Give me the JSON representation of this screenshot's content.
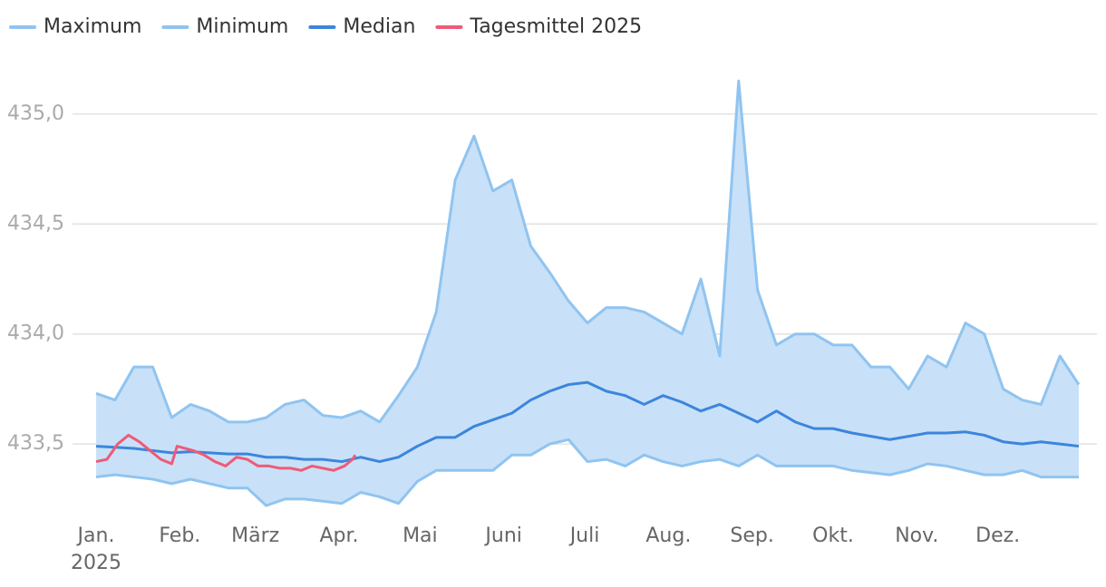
{
  "chart_data": {
    "type": "line",
    "xlim": [
      1,
      365
    ],
    "xticks": [
      {
        "value": 1,
        "label": "Jan."
      },
      {
        "value": 32,
        "label": "Feb."
      },
      {
        "value": 60,
        "label": "März"
      },
      {
        "value": 91,
        "label": "Apr."
      },
      {
        "value": 121,
        "label": "Mai"
      },
      {
        "value": 152,
        "label": "Juni"
      },
      {
        "value": 182,
        "label": "Juli"
      },
      {
        "value": 213,
        "label": "Aug."
      },
      {
        "value": 244,
        "label": "Sep."
      },
      {
        "value": 274,
        "label": "Okt."
      },
      {
        "value": 305,
        "label": "Nov."
      },
      {
        "value": 335,
        "label": "Dez."
      }
    ],
    "year_label": "2025",
    "ylim": [
      433.2,
      435.3
    ],
    "yticks": [
      {
        "value": 433.5,
        "label": "433,5"
      },
      {
        "value": 434.0,
        "label": "434,0"
      },
      {
        "value": 434.5,
        "label": "434,5"
      },
      {
        "value": 435.0,
        "label": "435,0"
      }
    ],
    "grid": true,
    "band_fill": "#c8e1f8",
    "series": [
      {
        "name": "Maximum",
        "color": "#90c4f0",
        "x": [
          1,
          8,
          15,
          22,
          29,
          36,
          43,
          50,
          57,
          64,
          71,
          78,
          85,
          92,
          99,
          106,
          113,
          120,
          127,
          134,
          141,
          148,
          155,
          162,
          169,
          176,
          183,
          190,
          197,
          204,
          211,
          218,
          225,
          232,
          239,
          246,
          253,
          260,
          267,
          274,
          281,
          288,
          295,
          302,
          309,
          316,
          323,
          330,
          337,
          344,
          351,
          358,
          365
        ],
        "values": [
          433.73,
          433.7,
          433.85,
          433.85,
          433.62,
          433.68,
          433.65,
          433.6,
          433.6,
          433.62,
          433.68,
          433.7,
          433.63,
          433.62,
          433.65,
          433.6,
          433.72,
          433.85,
          434.1,
          434.7,
          434.9,
          434.65,
          434.7,
          434.4,
          434.28,
          434.15,
          434.05,
          434.12,
          434.12,
          434.1,
          434.05,
          434.0,
          434.25,
          433.9,
          435.15,
          434.2,
          433.95,
          434.0,
          434.0,
          433.95,
          433.95,
          433.85,
          433.85,
          433.75,
          433.9,
          433.85,
          434.05,
          434.0,
          433.75,
          433.7,
          433.68,
          433.9,
          433.77
        ]
      },
      {
        "name": "Minimum",
        "color": "#90c4f0",
        "x": [
          1,
          8,
          15,
          22,
          29,
          36,
          43,
          50,
          57,
          64,
          71,
          78,
          85,
          92,
          99,
          106,
          113,
          120,
          127,
          134,
          141,
          148,
          155,
          162,
          169,
          176,
          183,
          190,
          197,
          204,
          211,
          218,
          225,
          232,
          239,
          246,
          253,
          260,
          267,
          274,
          281,
          288,
          295,
          302,
          309,
          316,
          323,
          330,
          337,
          344,
          351,
          358,
          365
        ],
        "values": [
          433.35,
          433.36,
          433.35,
          433.34,
          433.32,
          433.34,
          433.32,
          433.3,
          433.3,
          433.22,
          433.25,
          433.25,
          433.24,
          433.23,
          433.28,
          433.26,
          433.23,
          433.33,
          433.38,
          433.38,
          433.38,
          433.38,
          433.45,
          433.45,
          433.5,
          433.52,
          433.42,
          433.43,
          433.4,
          433.45,
          433.42,
          433.4,
          433.42,
          433.43,
          433.4,
          433.45,
          433.4,
          433.4,
          433.4,
          433.4,
          433.38,
          433.37,
          433.36,
          433.38,
          433.41,
          433.4,
          433.38,
          433.36,
          433.36,
          433.38,
          433.35,
          433.35,
          433.35
        ]
      },
      {
        "name": "Median",
        "color": "#3c85dc",
        "x": [
          1,
          8,
          15,
          22,
          29,
          36,
          43,
          50,
          57,
          64,
          71,
          78,
          85,
          92,
          99,
          106,
          113,
          120,
          127,
          134,
          141,
          148,
          155,
          162,
          169,
          176,
          183,
          190,
          197,
          204,
          211,
          218,
          225,
          232,
          239,
          246,
          253,
          260,
          267,
          274,
          281,
          288,
          295,
          302,
          309,
          316,
          323,
          330,
          337,
          344,
          351,
          358,
          365
        ],
        "values": [
          433.49,
          433.485,
          433.48,
          433.47,
          433.46,
          433.465,
          433.46,
          433.455,
          433.455,
          433.44,
          433.44,
          433.43,
          433.43,
          433.42,
          433.44,
          433.42,
          433.44,
          433.49,
          433.53,
          433.53,
          433.58,
          433.61,
          433.64,
          433.7,
          433.74,
          433.77,
          433.78,
          433.74,
          433.72,
          433.68,
          433.72,
          433.69,
          433.65,
          433.68,
          433.64,
          433.6,
          433.65,
          433.6,
          433.57,
          433.57,
          433.55,
          433.535,
          433.52,
          433.535,
          433.55,
          433.55,
          433.555,
          433.54,
          433.51,
          433.5,
          433.51,
          433.5,
          433.49
        ]
      },
      {
        "name": "Tagesmittel 2025",
        "color": "#f05a78",
        "x": [
          1,
          5,
          9,
          13,
          17,
          21,
          25,
          29,
          31,
          37,
          41,
          45,
          49,
          53,
          57,
          61,
          65,
          69,
          73,
          77,
          81,
          85,
          89,
          93,
          96,
          97
        ],
        "values": [
          433.42,
          433.43,
          433.5,
          433.54,
          433.51,
          433.47,
          433.43,
          433.41,
          433.49,
          433.47,
          433.45,
          433.42,
          433.4,
          433.44,
          433.43,
          433.4,
          433.4,
          433.39,
          433.39,
          433.38,
          433.4,
          433.39,
          433.38,
          433.4,
          433.43,
          433.45
        ]
      }
    ]
  }
}
